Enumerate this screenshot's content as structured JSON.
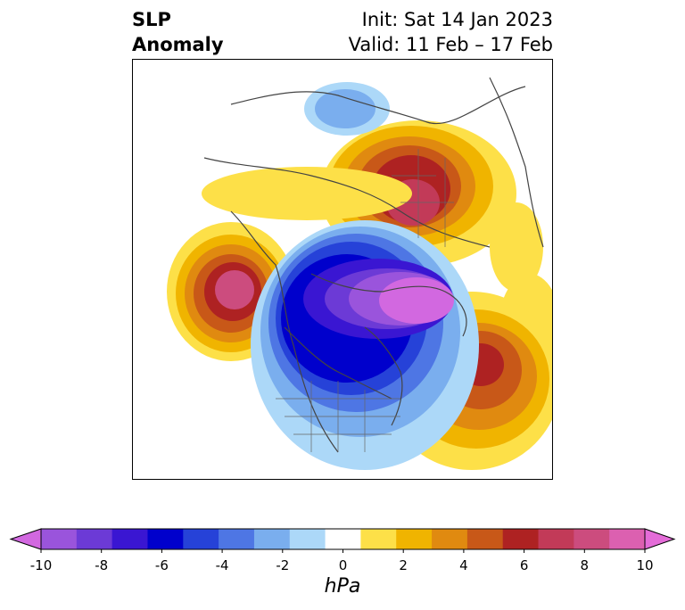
{
  "title": {
    "left_line1": "SLP",
    "left_line2": "Anomaly",
    "right_line1": "Init: Sat 14 Jan 2023",
    "right_line2": "Valid: 11 Feb – 17 Feb"
  },
  "colorbar": {
    "unit": "hPa",
    "extend": "both",
    "ticks": [
      "-10",
      "-8",
      "-6",
      "-4",
      "-2",
      "0",
      "2",
      "4",
      "6",
      "8",
      "10"
    ],
    "colors": [
      "#d268e0",
      "#9a54dc",
      "#6c3ad6",
      "#3a16d2",
      "#0000cc",
      "#2642d8",
      "#4e76e4",
      "#7aaeee",
      "#acd8f8",
      "#ffffff",
      "#fde048",
      "#f0b400",
      "#e08a10",
      "#c85818",
      "#ae2222",
      "#c23a58",
      "#cc4c7e",
      "#dc60b0",
      "#e46cd8"
    ]
  },
  "map": {
    "projection": "north-polar-stereographic",
    "features": [
      {
        "name": "high-anomaly-north-pacific",
        "sign": "positive"
      },
      {
        "name": "high-anomaly-siberia",
        "sign": "positive"
      },
      {
        "name": "high-anomaly-north-atlantic",
        "sign": "positive"
      },
      {
        "name": "low-anomaly-arctic-canada-greenland",
        "sign": "negative"
      },
      {
        "name": "low-anomaly-scandinavia",
        "sign": "negative"
      }
    ]
  }
}
